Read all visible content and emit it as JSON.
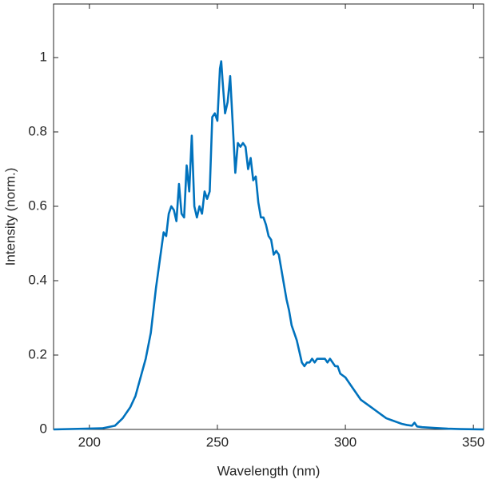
{
  "chart_data": {
    "type": "line",
    "xlabel": "Wavelength (nm)",
    "ylabel": "Intensity (norm.)",
    "xlim": [
      186,
      354
    ],
    "ylim": [
      0,
      1.144
    ],
    "xticks": [
      200,
      250,
      300,
      350
    ],
    "yticks": [
      0,
      0.2,
      0.4,
      0.6,
      0.8,
      1
    ],
    "grid": false,
    "series": [
      {
        "color": "#0072bd",
        "x": [
          186,
          205,
          210,
          213,
          216,
          218,
          220,
          222,
          224,
          226,
          228,
          229,
          230,
          231,
          232,
          233,
          234,
          235,
          236,
          237,
          238,
          239,
          240,
          241,
          242,
          243,
          244,
          245,
          246,
          247,
          248,
          249,
          250,
          251,
          251.5,
          252,
          253,
          254,
          255,
          256,
          257,
          258,
          259,
          260,
          261,
          262,
          263,
          264,
          265,
          266,
          267,
          268,
          269,
          270,
          271,
          272,
          273,
          274,
          275,
          276,
          277,
          278,
          279,
          280,
          281,
          282,
          283,
          284,
          285,
          286,
          287,
          288,
          289,
          290,
          291,
          292,
          293,
          294,
          295,
          296,
          297,
          298,
          300,
          302,
          304,
          306,
          308,
          310,
          312,
          314,
          316,
          318,
          320,
          322,
          324,
          326,
          327,
          328,
          330,
          335,
          340,
          345,
          354
        ],
        "values": [
          0,
          0.003,
          0.01,
          0.03,
          0.06,
          0.09,
          0.14,
          0.19,
          0.26,
          0.38,
          0.48,
          0.53,
          0.52,
          0.58,
          0.6,
          0.59,
          0.56,
          0.66,
          0.58,
          0.57,
          0.71,
          0.64,
          0.79,
          0.6,
          0.57,
          0.6,
          0.58,
          0.64,
          0.62,
          0.64,
          0.84,
          0.85,
          0.83,
          0.97,
          0.99,
          0.94,
          0.85,
          0.88,
          0.95,
          0.82,
          0.69,
          0.77,
          0.76,
          0.77,
          0.76,
          0.7,
          0.73,
          0.67,
          0.68,
          0.61,
          0.57,
          0.57,
          0.55,
          0.52,
          0.51,
          0.47,
          0.48,
          0.47,
          0.43,
          0.39,
          0.35,
          0.32,
          0.28,
          0.26,
          0.24,
          0.21,
          0.18,
          0.17,
          0.18,
          0.18,
          0.19,
          0.18,
          0.19,
          0.19,
          0.19,
          0.19,
          0.18,
          0.19,
          0.18,
          0.17,
          0.17,
          0.15,
          0.14,
          0.12,
          0.1,
          0.08,
          0.07,
          0.06,
          0.05,
          0.04,
          0.03,
          0.025,
          0.02,
          0.015,
          0.012,
          0.01,
          0.018,
          0.008,
          0.006,
          0.004,
          0.002,
          0.001,
          0
        ]
      }
    ]
  }
}
